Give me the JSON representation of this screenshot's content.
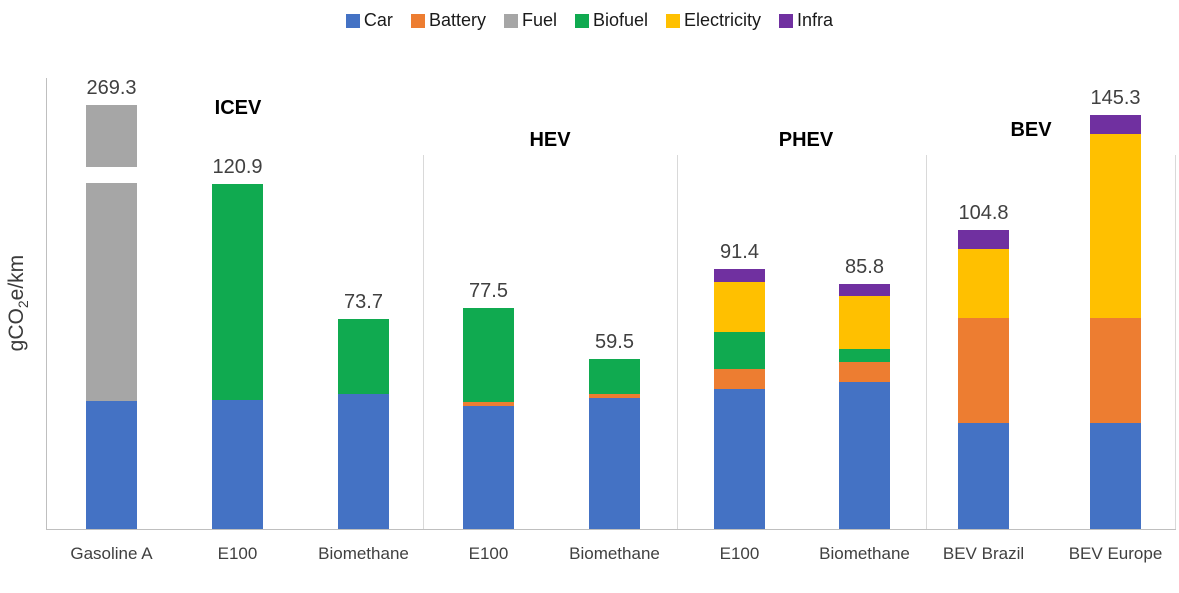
{
  "legend": {
    "items": [
      {
        "key": "car",
        "label": "Car",
        "color": "#4472C4"
      },
      {
        "key": "battery",
        "label": "Battery",
        "color": "#ED7D31"
      },
      {
        "key": "fuel",
        "label": "Fuel",
        "color": "#A6A6A6"
      },
      {
        "key": "biofuel",
        "label": "Biofuel",
        "color": "#10AA50"
      },
      {
        "key": "electricity",
        "label": "Electricity",
        "color": "#FFC000"
      },
      {
        "key": "infra",
        "label": "Infra",
        "color": "#7030A0"
      }
    ]
  },
  "ylabel": {
    "pre": "gCO",
    "sub": "2",
    "post": "e/km"
  },
  "chart_data": {
    "type": "bar",
    "stacked": true,
    "title": "",
    "xlabel": "",
    "ylabel": "gCO2e/km",
    "ylim": [
      0,
      160
    ],
    "grid": false,
    "legend_position": "top",
    "series_colors": {
      "car": "#4472C4",
      "battery": "#ED7D31",
      "fuel": "#A6A6A6",
      "biofuel": "#10AA50",
      "electricity": "#FFC000",
      "infra": "#7030A0"
    },
    "groups": [
      {
        "label": "ICEV",
        "bars": [
          {
            "category": "Gasoline A",
            "total": 269.3,
            "total_label": "269.3",
            "axis_break": true,
            "segments": [
              {
                "key": "car",
                "value": 45.0
              },
              {
                "key": "fuel",
                "value": 224.3
              }
            ],
            "display_segments": [
              {
                "key": "car",
                "units": 45.0
              },
              {
                "key": "fuel",
                "units": 76.3
              },
              {
                "key": "gap",
                "units": 5.6
              },
              {
                "key": "fuel",
                "units": 21.8
              }
            ]
          },
          {
            "category": "E100",
            "total": 120.9,
            "total_label": "120.9",
            "segments": [
              {
                "key": "car",
                "value": 45.3
              },
              {
                "key": "biofuel",
                "value": 75.6
              }
            ]
          },
          {
            "category": "Biomethane",
            "total": 73.7,
            "total_label": "73.7",
            "segments": [
              {
                "key": "car",
                "value": 47.5
              },
              {
                "key": "biofuel",
                "value": 26.2
              }
            ]
          }
        ]
      },
      {
        "label": "HEV",
        "bars": [
          {
            "category": "E100",
            "total": 77.5,
            "total_label": "77.5",
            "segments": [
              {
                "key": "car",
                "value": 43.0
              },
              {
                "key": "battery",
                "value": 1.4
              },
              {
                "key": "biofuel",
                "value": 33.1
              }
            ]
          },
          {
            "category": "Biomethane",
            "total": 59.5,
            "total_label": "59.5",
            "segments": [
              {
                "key": "car",
                "value": 46.0
              },
              {
                "key": "battery",
                "value": 1.4
              },
              {
                "key": "biofuel",
                "value": 12.1
              }
            ]
          }
        ]
      },
      {
        "label": "PHEV",
        "bars": [
          {
            "category": "E100",
            "total": 91.4,
            "total_label": "91.4",
            "segments": [
              {
                "key": "car",
                "value": 49.2
              },
              {
                "key": "battery",
                "value": 7.0
              },
              {
                "key": "biofuel",
                "value": 13.0
              },
              {
                "key": "electricity",
                "value": 17.6
              },
              {
                "key": "infra",
                "value": 4.6
              }
            ]
          },
          {
            "category": "Biomethane",
            "total": 85.8,
            "total_label": "85.8",
            "segments": [
              {
                "key": "car",
                "value": 51.7
              },
              {
                "key": "battery",
                "value": 7.0
              },
              {
                "key": "biofuel",
                "value": 4.6
              },
              {
                "key": "electricity",
                "value": 18.6
              },
              {
                "key": "infra",
                "value": 3.9
              }
            ]
          }
        ]
      },
      {
        "label": "BEV",
        "bars": [
          {
            "category": "BEV Brazil",
            "total": 104.8,
            "total_label": "104.8",
            "segments": [
              {
                "key": "car",
                "value": 37.3
              },
              {
                "key": "battery",
                "value": 36.6
              },
              {
                "key": "electricity",
                "value": 24.5
              },
              {
                "key": "infra",
                "value": 6.4
              }
            ]
          },
          {
            "category": "BEV Europe",
            "total": 145.3,
            "total_label": "145.3",
            "segments": [
              {
                "key": "car",
                "value": 37.3
              },
              {
                "key": "battery",
                "value": 36.6
              },
              {
                "key": "electricity",
                "value": 64.7
              },
              {
                "key": "infra",
                "value": 6.7
              }
            ]
          }
        ]
      }
    ]
  }
}
